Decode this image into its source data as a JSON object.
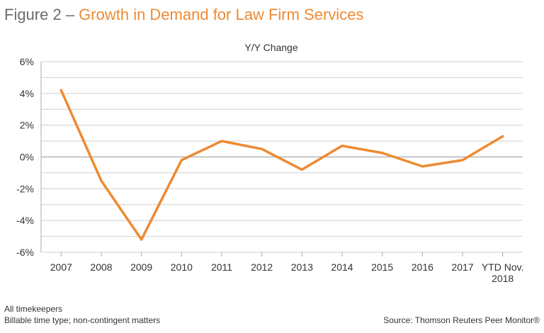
{
  "heading": {
    "prefix": "Figure 2 – ",
    "title": "Growth in Demand for Law Firm Services"
  },
  "footnotes": [
    "All timekeepers",
    "Billable time type; non-contingent matters"
  ],
  "source": "Source: Thomson Reuters Peer Monitor®",
  "colors": {
    "line": "#ee8a33",
    "heading_accent": "#ee8a33",
    "heading": "#6b6b6b",
    "grid": "#cfcfcf",
    "zero_line": "#a8a8a8"
  },
  "chart_data": {
    "type": "line",
    "title": "Y/Y Change",
    "xlabel": "",
    "ylabel": "",
    "categories": [
      "2007",
      "2008",
      "2009",
      "2010",
      "2011",
      "2012",
      "2013",
      "2014",
      "2015",
      "2016",
      "2017",
      "YTD Nov. 2018"
    ],
    "series": [
      {
        "values": [
          4.2,
          -1.5,
          -5.2,
          -0.2,
          1.0,
          0.5,
          -0.8,
          0.7,
          0.25,
          -0.6,
          -0.2,
          1.3
        ]
      }
    ],
    "ylim": [
      -6,
      6
    ],
    "yticks": [
      6,
      4,
      2,
      0,
      -2,
      -4,
      -6
    ],
    "ytick_labels": [
      "6%",
      "4%",
      "2%",
      "0%",
      "-2%",
      "-4%",
      "-6%"
    ],
    "grid": true,
    "legend": "none"
  }
}
